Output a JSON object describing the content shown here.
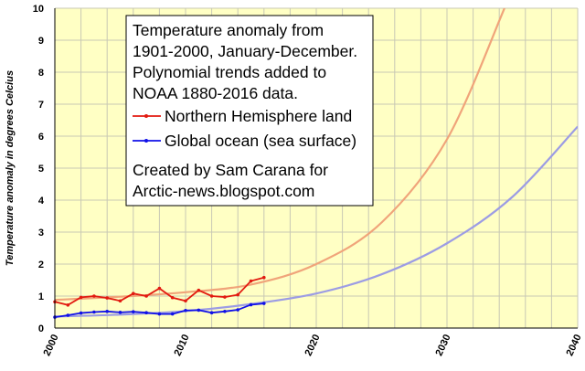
{
  "chart_data": {
    "type": "line",
    "ylabel": "Temperature anomaly in degrees Celcius",
    "xlim": [
      2000,
      2040
    ],
    "ylim": [
      0,
      10
    ],
    "x_ticks": [
      "2000",
      "2010",
      "2020",
      "2030",
      "2040"
    ],
    "y_ticks": [
      "0",
      "1",
      "2",
      "3",
      "4",
      "5",
      "6",
      "7",
      "8",
      "9",
      "10"
    ],
    "grid": true,
    "legend_position": "top-left",
    "annotation_lines": [
      "Temperature anomaly from",
      "1901-2000, January-December.",
      "Polynomial trends added to",
      "NOAA 1880-2016 data."
    ],
    "credit_lines": [
      "Created by Sam Carana for",
      "Arctic-news.blogspot.com"
    ],
    "colors": {
      "plot_background": "#ffffc4",
      "grid": "#c8c8b4",
      "nh_land": "#e21a10",
      "nh_land_trend": "#f0a47a",
      "ocean": "#1010e8",
      "ocean_trend": "#9c9ce4"
    },
    "series": [
      {
        "name": "Northern Hemisphere land",
        "x": [
          2000,
          2001,
          2002,
          2003,
          2004,
          2005,
          2006,
          2007,
          2008,
          2009,
          2010,
          2011,
          2012,
          2013,
          2014,
          2015,
          2016
        ],
        "values": [
          0.82,
          0.72,
          0.96,
          1.0,
          0.94,
          0.85,
          1.08,
          1.0,
          1.24,
          0.95,
          0.85,
          1.18,
          1.0,
          0.97,
          1.04,
          1.47,
          1.58
        ]
      },
      {
        "name": "Global ocean (sea surface)",
        "x": [
          2000,
          2001,
          2002,
          2003,
          2004,
          2005,
          2006,
          2007,
          2008,
          2009,
          2010,
          2011,
          2012,
          2013,
          2014,
          2015,
          2016
        ],
        "values": [
          0.34,
          0.4,
          0.47,
          0.5,
          0.52,
          0.49,
          0.51,
          0.48,
          0.44,
          0.44,
          0.55,
          0.56,
          0.48,
          0.52,
          0.57,
          0.73,
          0.77
        ]
      }
    ],
    "trends": [
      {
        "name": "Northern Hemisphere land trend",
        "x": [
          2000,
          2005,
          2010,
          2015,
          2020,
          2025,
          2030,
          2034.4
        ],
        "values": [
          0.88,
          0.98,
          1.12,
          1.36,
          2.0,
          3.3,
          5.9,
          10.0
        ]
      },
      {
        "name": "Global ocean trend",
        "x": [
          2000,
          2005,
          2010,
          2015,
          2020,
          2025,
          2030,
          2035,
          2040
        ],
        "values": [
          0.36,
          0.42,
          0.53,
          0.75,
          1.08,
          1.68,
          2.65,
          4.1,
          6.3
        ]
      }
    ]
  }
}
